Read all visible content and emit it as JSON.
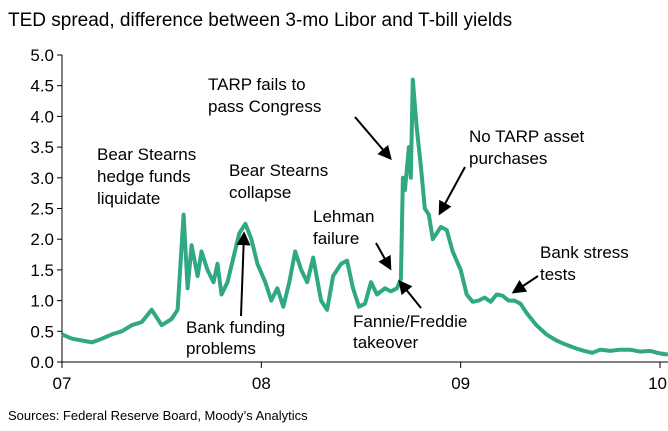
{
  "chart_data": {
    "type": "line",
    "title": "TED spread, difference between 3-mo Libor and T-bill yields",
    "source": "Sources: Federal Reserve Board, Moody’s Analytics",
    "color": "#2fa883",
    "xlim": [
      2007,
      2010.04
    ],
    "xticks": [
      {
        "value": 2007,
        "label": "07"
      },
      {
        "value": 2008,
        "label": "08"
      },
      {
        "value": 2009,
        "label": "09"
      },
      {
        "value": 2010,
        "label": "10"
      }
    ],
    "ylim": [
      0,
      5
    ],
    "yticks": [
      {
        "value": 0,
        "label": "0.0"
      },
      0.5,
      {
        "value": 1,
        "label": "1.0"
      },
      1.5,
      {
        "value": 2,
        "label": "2.0"
      },
      2.5,
      {
        "value": 3,
        "label": "3.0"
      },
      3.5,
      {
        "value": 4,
        "label": "4.0"
      },
      4.5,
      {
        "value": 5,
        "label": "5.0"
      }
    ],
    "grid": false,
    "x": [
      2007.0,
      2007.05,
      2007.1,
      2007.15,
      2007.2,
      2007.25,
      2007.3,
      2007.35,
      2007.4,
      2007.45,
      2007.5,
      2007.55,
      2007.58,
      2007.61,
      2007.63,
      2007.65,
      2007.68,
      2007.7,
      2007.73,
      2007.76,
      2007.78,
      2007.8,
      2007.83,
      2007.86,
      2007.89,
      2007.92,
      2007.95,
      2007.98,
      2008.02,
      2008.05,
      2008.08,
      2008.11,
      2008.14,
      2008.17,
      2008.2,
      2008.23,
      2008.26,
      2008.3,
      2008.33,
      2008.36,
      2008.4,
      2008.43,
      2008.46,
      2008.49,
      2008.52,
      2008.55,
      2008.58,
      2008.62,
      2008.65,
      2008.68,
      2008.7,
      2008.71,
      2008.72,
      2008.74,
      2008.75,
      2008.76,
      2008.78,
      2008.8,
      2008.82,
      2008.84,
      2008.86,
      2008.88,
      2008.9,
      2008.93,
      2008.96,
      2009.0,
      2009.03,
      2009.06,
      2009.09,
      2009.12,
      2009.15,
      2009.18,
      2009.21,
      2009.24,
      2009.27,
      2009.3,
      2009.33,
      2009.38,
      2009.43,
      2009.48,
      2009.53,
      2009.58,
      2009.62,
      2009.66,
      2009.7,
      2009.75,
      2009.8,
      2009.85,
      2009.9,
      2009.95,
      2010.0,
      2010.04
    ],
    "values": [
      0.45,
      0.38,
      0.35,
      0.32,
      0.38,
      0.45,
      0.5,
      0.6,
      0.65,
      0.85,
      0.6,
      0.7,
      0.85,
      2.4,
      1.2,
      1.9,
      1.4,
      1.8,
      1.5,
      1.3,
      1.6,
      1.1,
      1.3,
      1.7,
      2.1,
      2.25,
      2.0,
      1.6,
      1.3,
      1.0,
      1.2,
      0.9,
      1.3,
      1.8,
      1.5,
      1.3,
      1.7,
      1.0,
      0.85,
      1.4,
      1.6,
      1.65,
      1.2,
      0.9,
      0.95,
      1.3,
      1.1,
      1.2,
      1.15,
      1.2,
      1.35,
      3.0,
      2.8,
      3.5,
      3.0,
      4.6,
      3.8,
      3.2,
      2.5,
      2.4,
      2.0,
      2.1,
      2.2,
      2.15,
      1.8,
      1.5,
      1.1,
      0.98,
      1.0,
      1.05,
      0.98,
      1.1,
      1.08,
      1.0,
      1.0,
      0.95,
      0.8,
      0.6,
      0.45,
      0.35,
      0.28,
      0.22,
      0.18,
      0.15,
      0.2,
      0.18,
      0.2,
      0.2,
      0.17,
      0.18,
      0.14,
      0.12
    ],
    "annotations": [
      [
        "Bear Stearns",
        "hedge funds",
        "liquidate"
      ],
      [
        "Bear Stearns",
        "collapse"
      ],
      [
        "TARP fails to",
        "pass Congress"
      ],
      [
        "No TARP asset",
        "purchases"
      ],
      [
        "Lehman",
        "failure"
      ],
      [
        "Bank stress",
        "tests"
      ],
      [
        "Bank funding",
        "problems"
      ],
      [
        "Fannie/Freddie",
        "takeover"
      ]
    ]
  }
}
